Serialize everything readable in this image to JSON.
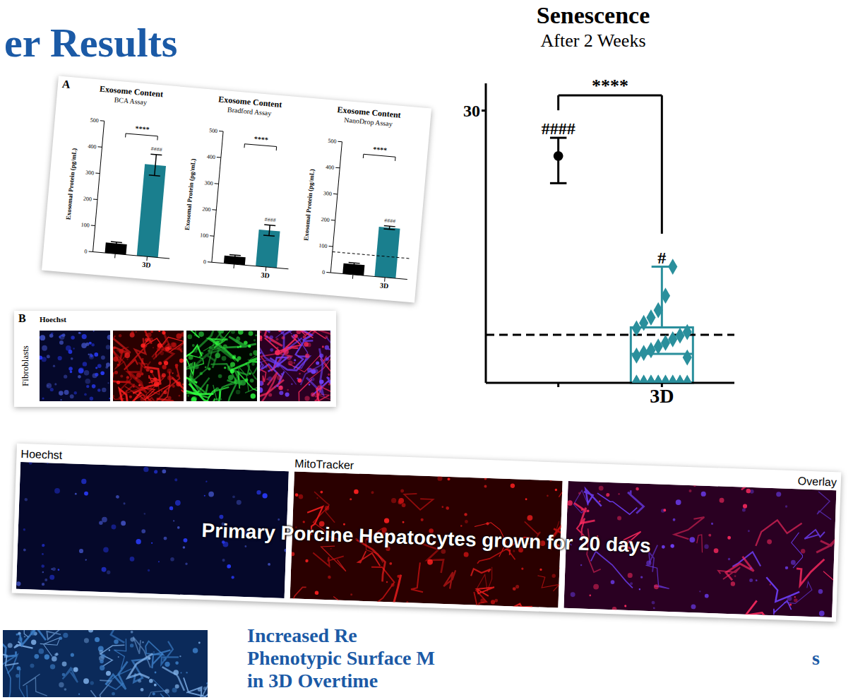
{
  "header": {
    "title": "er Results"
  },
  "chart_data": [
    {
      "type": "box",
      "title": "Senescence",
      "subtitle": "After 2 Weeks",
      "categories": [
        null,
        "3D"
      ],
      "ylim": [
        0,
        33
      ],
      "yticks": [
        30
      ],
      "reference_line": 5.3,
      "comparison_label": "****",
      "groups": [
        {
          "color": "#000000",
          "marker": "circle",
          "mean": 25,
          "error": [
            22,
            27
          ],
          "label": "####"
        },
        {
          "color": "#2a8f9c",
          "marker": "diamond",
          "box": {
            "low": 0,
            "q1": 0,
            "median": 3.2,
            "q3": 6.1,
            "high": 12.8
          },
          "label": "#",
          "points": [
            0,
            0,
            0,
            0,
            0,
            0,
            0,
            0,
            0,
            0,
            0,
            0,
            0,
            0,
            0,
            2.8,
            3,
            3.3,
            3.6,
            4,
            4.4,
            4.8,
            5.2,
            5.6,
            6,
            6.6,
            7.2,
            8,
            9.6,
            12.8
          ]
        }
      ]
    },
    {
      "type": "bar",
      "title": "Exosome Content",
      "subtitle": "BCA Assay",
      "y_label": "Exosomal Protein (pg/mL)",
      "categories": [
        null,
        "3D"
      ],
      "values": [
        40,
        350
      ],
      "errors": [
        5,
        40
      ],
      "colors": [
        "#000000",
        "#1a7f8e"
      ],
      "ylim": [
        0,
        500
      ],
      "yticks": [
        0,
        100,
        200,
        300,
        400,
        500
      ],
      "comparison_label": "****",
      "bar_labels": [
        null,
        "####"
      ]
    },
    {
      "type": "bar",
      "title": "Exosome Content",
      "subtitle": "Bradford Assay",
      "y_label": "Exosomal Protein (pg/mL)",
      "categories": [
        null,
        "3D"
      ],
      "values": [
        30,
        140
      ],
      "errors": [
        5,
        20
      ],
      "colors": [
        "#000000",
        "#1a7f8e"
      ],
      "ylim": [
        0,
        500
      ],
      "yticks": [
        0,
        100,
        200,
        300,
        400,
        500
      ],
      "comparison_label": "****",
      "bar_labels": [
        null,
        "####"
      ]
    },
    {
      "type": "bar",
      "title": "Exosome Content",
      "subtitle": "NanoDrop Assay",
      "y_label": "Exosomal Protein (pg/mL)",
      "categories": [
        null,
        "3D"
      ],
      "values": [
        40,
        190
      ],
      "errors": [
        5,
        6
      ],
      "colors": [
        "#000000",
        "#1a7f8e"
      ],
      "ylim": [
        0,
        500
      ],
      "yticks": [
        0,
        100,
        200,
        300,
        400,
        500
      ],
      "reference_line": 80,
      "comparison_label": "****",
      "bar_labels": [
        null,
        "####"
      ]
    }
  ],
  "panel_a": {
    "letter": "A"
  },
  "panel_b": {
    "letter": "B",
    "row_label": "Fibroblasts",
    "channel_label": "Hoechst"
  },
  "micrographs": {
    "caption": "Primary Porcine Hepatocytes grown for 20 days",
    "panels": [
      "Hoechst",
      "MitoTracker",
      "Overlay"
    ]
  },
  "heading": {
    "lines": [
      "Increased Re",
      "Phenotypic Surface M",
      "in 3D Overtime"
    ],
    "tail": "s"
  }
}
